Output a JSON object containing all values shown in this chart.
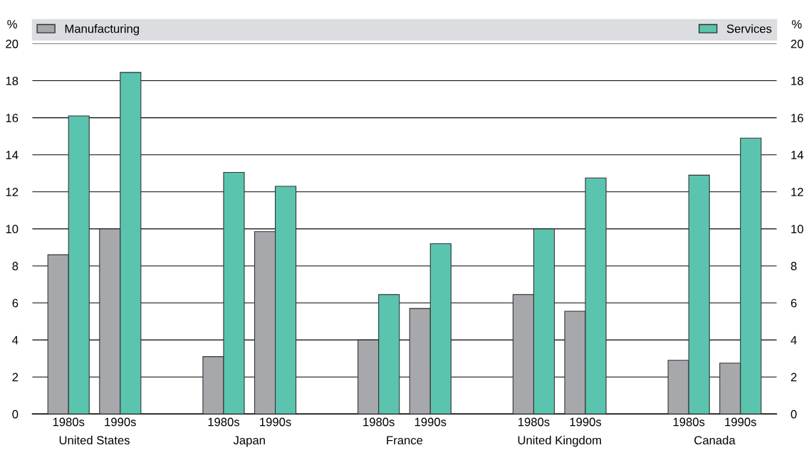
{
  "chart_data": {
    "type": "bar",
    "categories": [
      "1980s",
      "1990s",
      "1980s",
      "1990s",
      "1980s",
      "1990s",
      "1980s",
      "1990s",
      "1980s",
      "1990s"
    ],
    "annotations": [
      "United States",
      "Japan",
      "France",
      "United Kingdom",
      "Canada"
    ],
    "series": [
      {
        "name": "Manufacturing",
        "color": "#a7a8ac",
        "values": [
          8.6,
          10.0,
          3.1,
          9.85,
          4.0,
          5.7,
          6.45,
          5.55,
          2.9,
          2.75
        ]
      },
      {
        "name": "Services",
        "color": "#5bc4ae",
        "values": [
          16.1,
          18.45,
          13.05,
          12.3,
          6.45,
          9.2,
          10.0,
          12.75,
          12.9,
          14.9
        ]
      }
    ],
    "ylabel": "%",
    "y2label": "%",
    "ylim": [
      0,
      20
    ],
    "yticks": [
      0,
      2,
      4,
      6,
      8,
      10,
      12,
      14,
      16,
      18,
      20
    ],
    "y2lim": [
      0,
      20
    ],
    "y2ticks": [
      0,
      2,
      4,
      6,
      8,
      10,
      12,
      14,
      16,
      18,
      20
    ],
    "grid": "y",
    "legend": "top"
  }
}
